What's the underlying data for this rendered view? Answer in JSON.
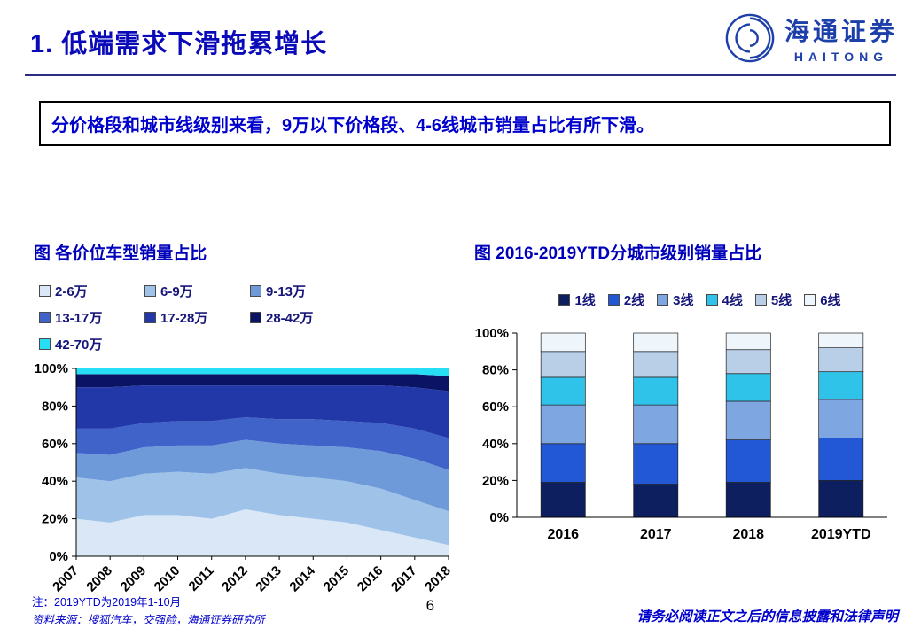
{
  "header": {
    "title": "1. 低端需求下滑拖累增长",
    "logo": {
      "chinese": "海通证券",
      "english": "HAITONG"
    }
  },
  "key_point": "分价格段和城市线级别来看，9万以下价格段、4-6线城市销量占比有所下滑。",
  "colors": {
    "title_blue": "#0a0ab8",
    "box_text_blue": "#0000cd",
    "chart_title_blue": "#0000bb",
    "legend_text_navy": "#16167a",
    "rule_navy": "#2b2b80",
    "footer_blue": "#0000cc",
    "logo_blue": "#1d3faa"
  },
  "chart_data": [
    {
      "type": "area",
      "stacked": true,
      "percent": true,
      "title": "图 各价位车型销量占比",
      "categories": [
        "2007",
        "2008",
        "2009",
        "2010",
        "2011",
        "2012",
        "2013",
        "2014",
        "2015",
        "2016",
        "2017",
        "2018"
      ],
      "series": [
        {
          "name": "2-6万",
          "color": "#d9e7f6",
          "values": [
            20,
            18,
            22,
            22,
            20,
            25,
            22,
            20,
            18,
            14,
            10,
            6
          ]
        },
        {
          "name": "6-9万",
          "color": "#9fc3e8",
          "values": [
            22,
            22,
            22,
            23,
            24,
            22,
            22,
            22,
            22,
            22,
            20,
            18
          ]
        },
        {
          "name": "9-13万",
          "color": "#6f9ad9",
          "values": [
            13,
            14,
            14,
            14,
            15,
            15,
            16,
            17,
            18,
            20,
            22,
            22
          ]
        },
        {
          "name": "13-17万",
          "color": "#3f63c8",
          "values": [
            13,
            14,
            13,
            13,
            13,
            12,
            13,
            14,
            14,
            15,
            16,
            17
          ]
        },
        {
          "name": "17-28万",
          "color": "#2238a8",
          "values": [
            22,
            22,
            20,
            19,
            19,
            17,
            18,
            18,
            19,
            20,
            22,
            25
          ]
        },
        {
          "name": "28-42万",
          "color": "#0b1464",
          "values": [
            7,
            7,
            6,
            6,
            6,
            6,
            6,
            6,
            6,
            6,
            7,
            8
          ]
        },
        {
          "name": "42-70万",
          "color": "#27dff5",
          "values": [
            3,
            3,
            3,
            3,
            3,
            3,
            3,
            3,
            3,
            3,
            3,
            4
          ]
        }
      ],
      "ylim": [
        0,
        100
      ],
      "ytick_step": 20,
      "ytick_suffix": "%",
      "x_label_rotation": -45,
      "legend_position": "top",
      "grid": false
    },
    {
      "type": "bar",
      "stacked": true,
      "percent": true,
      "title": "图 2016-2019YTD分城市级别销量占比",
      "categories": [
        "2016",
        "2017",
        "2018",
        "2019YTD"
      ],
      "series": [
        {
          "name": "1线",
          "color": "#0d1f5e",
          "values": [
            19,
            18,
            19,
            20
          ]
        },
        {
          "name": "2线",
          "color": "#2257d6",
          "values": [
            21,
            22,
            23,
            23
          ]
        },
        {
          "name": "3线",
          "color": "#7ea6e0",
          "values": [
            21,
            21,
            21,
            21
          ]
        },
        {
          "name": "4线",
          "color": "#30c3ea",
          "values": [
            15,
            15,
            15,
            15
          ]
        },
        {
          "name": "5线",
          "color": "#b9cfe8",
          "values": [
            14,
            14,
            13,
            13
          ]
        },
        {
          "name": "6线",
          "color": "#eef6fc",
          "values": [
            10,
            10,
            9,
            8
          ]
        }
      ],
      "ylim": [
        0,
        100
      ],
      "ytick_step": 20,
      "ytick_suffix": "%",
      "legend_position": "top",
      "grid": false
    }
  ],
  "footer": {
    "note": "注：2019YTD为2019年1-10月",
    "source": "资料来源：搜狐汽车，交强险，海通证券研究所",
    "page_number": "6",
    "disclaimer": "请务必阅读正文之后的信息披露和法律声明"
  }
}
